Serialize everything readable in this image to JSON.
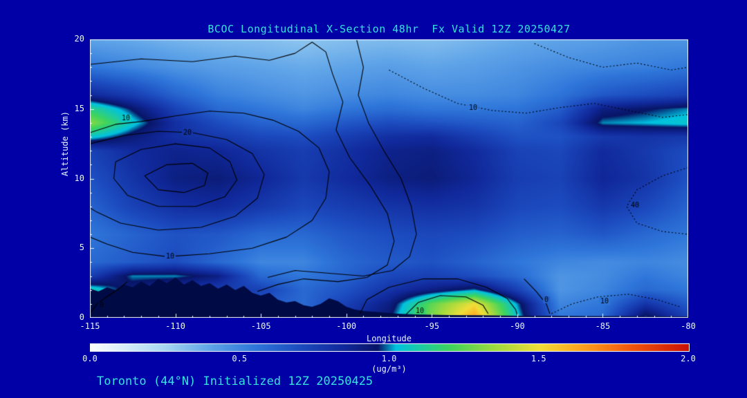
{
  "title": "BCOC Longitudinal X-Section 48hr  Fx Valid 12Z 20250427",
  "footer": "Toronto (44°N) Initialized 12Z 20250425",
  "colors": {
    "page_bg": "#0000A6",
    "title_text": "#33E3DE",
    "axis_text": "#E8F6FC",
    "terrain": "#000B46",
    "frame": "#F0F8FF",
    "contour_line": "#000000"
  },
  "chart_data": {
    "type": "heatmap",
    "title": "BCOC Longitudinal X-Section 48hr  Fx Valid 12Z 20250427",
    "xlabel": "Longitude",
    "ylabel": "Altitude (km)",
    "xlim": [
      -115,
      -80
    ],
    "ylim": [
      0,
      20
    ],
    "x_ticks": [
      -115,
      -110,
      -105,
      -100,
      -95,
      -90,
      -85,
      -80
    ],
    "y_ticks": [
      0,
      5,
      10,
      15,
      20
    ],
    "x_minor_step": 1,
    "y_minor_step": 1,
    "colorbar": {
      "min": 0.0,
      "max": 2.0,
      "ticks": [
        0.0,
        0.5,
        1.0,
        1.5,
        2.0
      ],
      "tick_labels": [
        "0.0",
        "0.5",
        "1.0",
        "1.5",
        "2.0"
      ],
      "units": "(ug/m³)",
      "stops": [
        [
          0.0,
          "#FDFFFF"
        ],
        [
          0.1,
          "#DCEFF9"
        ],
        [
          0.25,
          "#A6D6F2"
        ],
        [
          0.4,
          "#5FA4E8"
        ],
        [
          0.55,
          "#2F77DA"
        ],
        [
          0.7,
          "#1C4CC0"
        ],
        [
          0.85,
          "#10289A"
        ],
        [
          0.96,
          "#081566"
        ],
        [
          1.02,
          "#00C2E0"
        ],
        [
          1.2,
          "#3ED45E"
        ],
        [
          1.35,
          "#9EDA3E"
        ],
        [
          1.5,
          "#F0DE38"
        ],
        [
          1.65,
          "#FFA01E"
        ],
        [
          1.8,
          "#F2590F"
        ],
        [
          2.0,
          "#C81205"
        ]
      ]
    },
    "grid": {
      "lons": [
        -115,
        -112.5,
        -110,
        -107.5,
        -105,
        -102.5,
        -100,
        -97.5,
        -95,
        -92.5,
        -90,
        -87.5,
        -85,
        -82.5,
        -80
      ],
      "alts": [
        0,
        1,
        2,
        3,
        4,
        6,
        8,
        10,
        12,
        13,
        14,
        15,
        16,
        18,
        20
      ],
      "values": [
        [
          0.5,
          0.5,
          0.5,
          0.5,
          0.5,
          0.55,
          0.8,
          0.95,
          1.3,
          1.65,
          1.05,
          0.55,
          0.6,
          1.0,
          0.75
        ],
        [
          0.6,
          0.6,
          0.6,
          0.6,
          0.65,
          0.6,
          0.75,
          0.9,
          1.25,
          1.5,
          1.0,
          0.5,
          0.55,
          0.8,
          0.65
        ],
        [
          1.1,
          0.9,
          0.8,
          0.75,
          0.75,
          0.6,
          0.68,
          0.8,
          0.9,
          1.0,
          0.75,
          0.45,
          0.5,
          0.6,
          0.55
        ],
        [
          0.75,
          1.0,
          1.0,
          0.9,
          0.6,
          0.55,
          0.62,
          0.72,
          0.75,
          0.7,
          0.6,
          0.45,
          0.48,
          0.55,
          0.5
        ],
        [
          0.6,
          0.65,
          0.7,
          0.6,
          0.5,
          0.5,
          0.6,
          0.65,
          0.68,
          0.62,
          0.55,
          0.5,
          0.48,
          0.5,
          0.48
        ],
        [
          0.55,
          0.62,
          0.68,
          0.66,
          0.6,
          0.6,
          0.66,
          0.7,
          0.72,
          0.7,
          0.64,
          0.62,
          0.66,
          0.6,
          0.55
        ],
        [
          0.62,
          0.74,
          0.82,
          0.84,
          0.78,
          0.72,
          0.76,
          0.8,
          0.82,
          0.8,
          0.72,
          0.7,
          0.78,
          0.72,
          0.62
        ],
        [
          0.68,
          0.8,
          0.9,
          0.92,
          0.86,
          0.78,
          0.84,
          0.9,
          0.92,
          0.86,
          0.76,
          0.74,
          0.86,
          0.8,
          0.68
        ],
        [
          0.74,
          0.84,
          0.88,
          0.86,
          0.8,
          0.76,
          0.82,
          0.88,
          0.9,
          0.84,
          0.74,
          0.72,
          0.84,
          0.78,
          0.7
        ],
        [
          1.05,
          0.92,
          0.82,
          0.78,
          0.72,
          0.7,
          0.76,
          0.82,
          0.84,
          0.76,
          0.68,
          0.68,
          0.78,
          0.8,
          0.78
        ],
        [
          1.32,
          1.05,
          0.82,
          0.7,
          0.62,
          0.6,
          0.66,
          0.7,
          0.68,
          0.65,
          0.62,
          0.72,
          1.0,
          1.02,
          1.05
        ],
        [
          1.15,
          0.95,
          0.74,
          0.6,
          0.55,
          0.5,
          0.55,
          0.58,
          0.55,
          0.55,
          0.56,
          0.64,
          0.9,
          0.95,
          1.0
        ],
        [
          0.85,
          0.76,
          0.62,
          0.52,
          0.48,
          0.45,
          0.48,
          0.5,
          0.48,
          0.48,
          0.5,
          0.56,
          0.66,
          0.7,
          0.74
        ],
        [
          0.55,
          0.5,
          0.45,
          0.42,
          0.4,
          0.38,
          0.4,
          0.42,
          0.4,
          0.42,
          0.45,
          0.48,
          0.5,
          0.52,
          0.55
        ],
        [
          0.4,
          0.38,
          0.35,
          0.33,
          0.32,
          0.3,
          0.32,
          0.33,
          0.32,
          0.35,
          0.38,
          0.4,
          0.42,
          0.45,
          0.45
        ]
      ]
    },
    "terrain": [
      [
        -115,
        2.1
      ],
      [
        -114.5,
        1.9
      ],
      [
        -114,
        2.2
      ],
      [
        -113.5,
        2.0
      ],
      [
        -113,
        2.4
      ],
      [
        -112.5,
        2.2
      ],
      [
        -112,
        2.6
      ],
      [
        -111.5,
        2.3
      ],
      [
        -111,
        2.8
      ],
      [
        -110.5,
        2.5
      ],
      [
        -110,
        2.9
      ],
      [
        -109.5,
        2.4
      ],
      [
        -109,
        2.7
      ],
      [
        -108.5,
        2.3
      ],
      [
        -108,
        2.5
      ],
      [
        -107.5,
        2.1
      ],
      [
        -107,
        2.4
      ],
      [
        -106.5,
        2.0
      ],
      [
        -106,
        2.3
      ],
      [
        -105.5,
        1.8
      ],
      [
        -105,
        1.6
      ],
      [
        -104.5,
        1.8
      ],
      [
        -104,
        1.3
      ],
      [
        -103.5,
        1.1
      ],
      [
        -103,
        1.2
      ],
      [
        -102.5,
        0.9
      ],
      [
        -102,
        0.8
      ],
      [
        -101.5,
        1.0
      ],
      [
        -101,
        1.4
      ],
      [
        -100.5,
        1.2
      ],
      [
        -100,
        0.8
      ],
      [
        -99.5,
        0.6
      ],
      [
        -99,
        0.5
      ],
      [
        -98,
        0.4
      ],
      [
        -97,
        0.3
      ],
      [
        -96,
        0.25
      ],
      [
        -94,
        0.2
      ],
      [
        -92,
        0.18
      ],
      [
        -90,
        0.15
      ],
      [
        -88,
        0.15
      ],
      [
        -86,
        0.12
      ],
      [
        -84,
        0.12
      ],
      [
        -82,
        0.1
      ],
      [
        -80,
        0.1
      ]
    ],
    "contours": [
      {
        "level": "10",
        "style": "solid",
        "labels": [
          {
            "text": "10",
            "pos": [
              -112.9,
              14.35
            ]
          },
          {
            "text": "10",
            "pos": [
              -110.3,
              4.4
            ]
          }
        ],
        "points": [
          [
            -115,
            13.3
          ],
          [
            -113.5,
            13.9
          ],
          [
            -112,
            14.1
          ],
          [
            -110,
            14.5
          ],
          [
            -108,
            14.85
          ],
          [
            -106,
            14.7
          ],
          [
            -104.3,
            14.2
          ],
          [
            -102.8,
            13.4
          ],
          [
            -101.6,
            12.2
          ],
          [
            -101,
            10.5
          ],
          [
            -101.2,
            8.6
          ],
          [
            -102,
            7.0
          ],
          [
            -103.5,
            5.8
          ],
          [
            -105.5,
            5.0
          ],
          [
            -108,
            4.6
          ],
          [
            -110.5,
            4.4
          ],
          [
            -112.5,
            4.7
          ],
          [
            -114,
            5.3
          ],
          [
            -115,
            5.8
          ]
        ]
      },
      {
        "level": "20",
        "style": "solid",
        "labels": [
          {
            "text": "20",
            "pos": [
              -109.3,
              13.3
            ]
          }
        ],
        "points": [
          [
            -115,
            12.5
          ],
          [
            -113,
            13.1
          ],
          [
            -111,
            13.4
          ],
          [
            -109,
            13.3
          ],
          [
            -107,
            12.8
          ],
          [
            -105.5,
            11.8
          ],
          [
            -104.8,
            10.3
          ],
          [
            -105.2,
            8.6
          ],
          [
            -106.5,
            7.3
          ],
          [
            -108.5,
            6.5
          ],
          [
            -111,
            6.3
          ],
          [
            -113.2,
            6.8
          ],
          [
            -114.6,
            7.6
          ],
          [
            -115,
            7.9
          ]
        ]
      },
      {
        "level": "30",
        "style": "solid",
        "labels": [],
        "points": [
          [
            -113.5,
            11.2
          ],
          [
            -112,
            12.1
          ],
          [
            -110,
            12.5
          ],
          [
            -108,
            12.2
          ],
          [
            -106.8,
            11.2
          ],
          [
            -106.4,
            9.9
          ],
          [
            -107.1,
            8.7
          ],
          [
            -108.8,
            8.0
          ],
          [
            -111,
            8.0
          ],
          [
            -112.8,
            8.8
          ],
          [
            -113.6,
            10.0
          ],
          [
            -113.5,
            11.2
          ]
        ]
      },
      {
        "level": "40",
        "style": "solid",
        "labels": [],
        "points": [
          [
            -111.8,
            10.2
          ],
          [
            -110.5,
            11.0
          ],
          [
            -109,
            11.1
          ],
          [
            -108.1,
            10.4
          ],
          [
            -108.3,
            9.5
          ],
          [
            -109.5,
            9.0
          ],
          [
            -111,
            9.2
          ],
          [
            -111.8,
            10.2
          ]
        ]
      },
      {
        "level": "10",
        "style": "solid",
        "labels": [],
        "points": [
          [
            -115,
            18.2
          ],
          [
            -112,
            18.6
          ],
          [
            -109,
            18.4
          ],
          [
            -106.5,
            18.8
          ],
          [
            -104.5,
            18.5
          ],
          [
            -103,
            19.0
          ],
          [
            -102,
            19.8
          ],
          [
            -101.2,
            19.1
          ],
          [
            -100.8,
            17.5
          ],
          [
            -100.2,
            15.5
          ],
          [
            -100.6,
            13.5
          ],
          [
            -99.8,
            11.5
          ],
          [
            -98.6,
            9.5
          ],
          [
            -97.6,
            7.5
          ],
          [
            -97.2,
            5.5
          ],
          [
            -97.6,
            3.8
          ],
          [
            -98.8,
            2.9
          ],
          [
            -100.5,
            2.6
          ],
          [
            -102.5,
            2.8
          ],
          [
            -104,
            2.4
          ],
          [
            -105.2,
            1.9
          ]
        ]
      },
      {
        "level": "10",
        "style": "solid",
        "labels": [],
        "points": [
          [
            -99.4,
            20.0
          ],
          [
            -99.0,
            18.0
          ],
          [
            -99.3,
            16.0
          ],
          [
            -98.7,
            14.0
          ],
          [
            -97.8,
            12.0
          ],
          [
            -96.8,
            10.0
          ],
          [
            -96.2,
            8.0
          ],
          [
            -95.9,
            6.0
          ],
          [
            -96.3,
            4.4
          ],
          [
            -97.3,
            3.4
          ],
          [
            -99,
            3.0
          ],
          [
            -101,
            3.2
          ],
          [
            -103,
            3.4
          ],
          [
            -104.6,
            2.9
          ]
        ]
      },
      {
        "level": "10",
        "style": "solid",
        "labels": [],
        "points": [
          [
            -99.2,
            0.3
          ],
          [
            -98.8,
            1.3
          ],
          [
            -97.5,
            2.2
          ],
          [
            -95.5,
            2.8
          ],
          [
            -93.5,
            2.8
          ],
          [
            -91.8,
            2.2
          ],
          [
            -90.6,
            1.4
          ],
          [
            -90.1,
            0.6
          ],
          [
            -90.0,
            0.2
          ]
        ]
      },
      {
        "level": "10",
        "style": "solid",
        "labels": [
          {
            "text": "10",
            "pos": [
              -95.7,
              0.5
            ]
          }
        ],
        "points": [
          [
            -96.5,
            0.25
          ],
          [
            -95.8,
            1.1
          ],
          [
            -94.5,
            1.6
          ],
          [
            -93.0,
            1.5
          ],
          [
            -92.0,
            0.9
          ],
          [
            -91.7,
            0.3
          ]
        ]
      },
      {
        "level": "0",
        "style": "solid",
        "labels": [
          {
            "text": "0",
            "pos": [
              -114.3,
              0.9
            ]
          }
        ],
        "points": [
          [
            -115,
            0.3
          ],
          [
            -114.6,
            1.0
          ],
          [
            -113.9,
            1.6
          ],
          [
            -113.3,
            2.1
          ],
          [
            -112.8,
            2.6
          ]
        ]
      },
      {
        "level": "0",
        "style": "solid",
        "labels": [
          {
            "text": "0",
            "pos": [
              -88.3,
              1.3
            ]
          }
        ],
        "points": [
          [
            -89.6,
            2.8
          ],
          [
            -88.9,
            1.9
          ],
          [
            -88.3,
            1.0
          ],
          [
            -88.1,
            0.3
          ]
        ]
      },
      {
        "level": "10",
        "style": "dotted",
        "labels": [
          {
            "text": "10",
            "pos": [
              -92.6,
              15.1
            ]
          }
        ],
        "points": [
          [
            -97.5,
            17.8
          ],
          [
            -95.5,
            16.5
          ],
          [
            -93.5,
            15.4
          ],
          [
            -91.5,
            14.9
          ],
          [
            -89.5,
            14.7
          ],
          [
            -87.5,
            15.1
          ],
          [
            -85.5,
            15.4
          ],
          [
            -83.5,
            14.9
          ],
          [
            -81.5,
            14.4
          ],
          [
            -80,
            14.6
          ]
        ]
      },
      {
        "level": "10",
        "style": "dotted",
        "labels": [],
        "points": [
          [
            -89,
            19.7
          ],
          [
            -87,
            18.7
          ],
          [
            -85,
            18.0
          ],
          [
            -83,
            18.3
          ],
          [
            -81,
            17.8
          ],
          [
            -80,
            18.0
          ]
        ]
      },
      {
        "level": "40",
        "style": "dotted",
        "labels": [
          {
            "text": "40",
            "pos": [
              -83.1,
              8.1
            ]
          }
        ],
        "points": [
          [
            -80,
            10.8
          ],
          [
            -81.5,
            10.2
          ],
          [
            -83,
            9.2
          ],
          [
            -83.6,
            8.0
          ],
          [
            -83,
            6.8
          ],
          [
            -81.5,
            6.2
          ],
          [
            -80,
            6.0
          ]
        ]
      },
      {
        "level": "10",
        "style": "dotted",
        "labels": [
          {
            "text": "10",
            "pos": [
              -84.9,
              1.2
            ]
          }
        ],
        "points": [
          [
            -88,
            0.3
          ],
          [
            -86.8,
            1.0
          ],
          [
            -85.3,
            1.5
          ],
          [
            -83.5,
            1.7
          ],
          [
            -81.8,
            1.3
          ],
          [
            -80.5,
            0.8
          ]
        ]
      }
    ]
  }
}
